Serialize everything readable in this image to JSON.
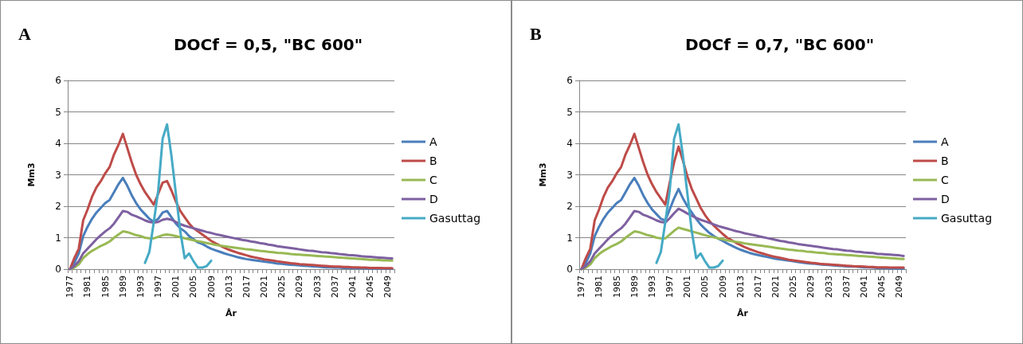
{
  "chart_data": [
    {
      "type": "line",
      "title": "DOCf = 0,5, \"BC 600\"",
      "xlabel": "År",
      "ylabel": "Mm3",
      "annotations": [
        "A"
      ],
      "grid": "y",
      "legend": "right",
      "marker": "none",
      "line_style": "solid",
      "ylim": [
        0,
        6
      ],
      "yticks": [
        0,
        1,
        2,
        3,
        4,
        5,
        6
      ],
      "categories": [
        "1977",
        null,
        null,
        null,
        "1981",
        null,
        null,
        null,
        "1985",
        null,
        null,
        null,
        "1989",
        null,
        null,
        null,
        "1993",
        null,
        null,
        null,
        "1997",
        null,
        null,
        null,
        "2001",
        null,
        null,
        null,
        "2005",
        null,
        null,
        null,
        "2009",
        null,
        null,
        null,
        "2013",
        null,
        null,
        null,
        "2017",
        null,
        null,
        null,
        "2021",
        null,
        null,
        null,
        "2025",
        null,
        null,
        null,
        "2029",
        null,
        null,
        null,
        "2033",
        null,
        null,
        null,
        "2037",
        null,
        null,
        null,
        "2041",
        null,
        null,
        null,
        "2045",
        null,
        null,
        null,
        "2049",
        null
      ],
      "series": [
        {
          "name": "A",
          "color": "#4a7ebb",
          "values": [
            0,
            0.2,
            0.5,
            1.05,
            1.35,
            1.6,
            1.8,
            1.95,
            2.1,
            2.2,
            2.45,
            2.7,
            2.9,
            2.65,
            2.35,
            2.1,
            1.9,
            1.75,
            1.6,
            1.5,
            1.6,
            1.8,
            1.85,
            1.65,
            1.45,
            1.3,
            1.2,
            1.05,
            0.95,
            0.85,
            0.8,
            0.72,
            0.65,
            0.6,
            0.55,
            0.5,
            0.46,
            0.42,
            0.38,
            0.35,
            0.32,
            0.3,
            0.28,
            0.26,
            0.24,
            0.22,
            0.2,
            0.18,
            0.17,
            0.15,
            0.14,
            0.13,
            0.12,
            0.11,
            0.1,
            0.09,
            0.08,
            0.07,
            0.06,
            0.06,
            0.05,
            0.05,
            0.04,
            0.04,
            0.03,
            0.03,
            0.03,
            0.02,
            0.02,
            0.02,
            0.02,
            0.02,
            0.01,
            0.01
          ]
        },
        {
          "name": "B",
          "color": "#be4b48",
          "values": [
            0,
            0.35,
            0.65,
            1.55,
            1.9,
            2.3,
            2.6,
            2.8,
            3.05,
            3.25,
            3.65,
            3.95,
            4.3,
            3.85,
            3.4,
            3.0,
            2.7,
            2.45,
            2.25,
            2.05,
            2.4,
            2.75,
            2.8,
            2.5,
            2.15,
            1.85,
            1.65,
            1.45,
            1.3,
            1.2,
            1.1,
            1.0,
            0.9,
            0.82,
            0.75,
            0.68,
            0.62,
            0.57,
            0.52,
            0.48,
            0.44,
            0.4,
            0.37,
            0.34,
            0.31,
            0.29,
            0.27,
            0.25,
            0.23,
            0.21,
            0.19,
            0.18,
            0.16,
            0.15,
            0.14,
            0.13,
            0.12,
            0.11,
            0.1,
            0.09,
            0.08,
            0.08,
            0.07,
            0.07,
            0.06,
            0.06,
            0.05,
            0.05,
            0.04,
            0.04,
            0.04,
            0.03,
            0.03,
            0.03
          ]
        },
        {
          "name": "C",
          "color": "#98b954",
          "values": [
            0,
            0.05,
            0.15,
            0.35,
            0.48,
            0.58,
            0.66,
            0.74,
            0.8,
            0.88,
            1.0,
            1.1,
            1.2,
            1.18,
            1.13,
            1.08,
            1.05,
            1.0,
            0.98,
            0.98,
            1.03,
            1.08,
            1.1,
            1.08,
            1.05,
            1.02,
            0.98,
            0.95,
            0.92,
            0.89,
            0.86,
            0.83,
            0.8,
            0.77,
            0.75,
            0.73,
            0.71,
            0.69,
            0.67,
            0.65,
            0.63,
            0.62,
            0.6,
            0.58,
            0.57,
            0.55,
            0.54,
            0.52,
            0.51,
            0.5,
            0.48,
            0.47,
            0.46,
            0.45,
            0.44,
            0.43,
            0.42,
            0.41,
            0.4,
            0.39,
            0.38,
            0.37,
            0.36,
            0.35,
            0.34,
            0.33,
            0.32,
            0.31,
            0.3,
            0.3,
            0.29,
            0.28,
            0.28,
            0.27
          ]
        },
        {
          "name": "D",
          "color": "#7d60a0",
          "values": [
            0,
            0.1,
            0.25,
            0.5,
            0.65,
            0.8,
            0.95,
            1.08,
            1.2,
            1.3,
            1.45,
            1.65,
            1.85,
            1.82,
            1.73,
            1.68,
            1.62,
            1.55,
            1.5,
            1.48,
            1.5,
            1.57,
            1.6,
            1.57,
            1.5,
            1.43,
            1.38,
            1.34,
            1.3,
            1.26,
            1.22,
            1.18,
            1.15,
            1.11,
            1.08,
            1.05,
            1.02,
            0.99,
            0.96,
            0.93,
            0.91,
            0.88,
            0.86,
            0.83,
            0.81,
            0.78,
            0.76,
            0.73,
            0.71,
            0.69,
            0.67,
            0.65,
            0.63,
            0.61,
            0.59,
            0.58,
            0.56,
            0.54,
            0.53,
            0.51,
            0.5,
            0.48,
            0.47,
            0.45,
            0.44,
            0.43,
            0.41,
            0.4,
            0.39,
            0.38,
            0.37,
            0.36,
            0.35,
            0.34
          ]
        },
        {
          "name": "Gasuttag",
          "color": "#46aac5",
          "values": [
            null,
            null,
            null,
            null,
            null,
            null,
            null,
            null,
            null,
            null,
            null,
            null,
            null,
            null,
            null,
            null,
            null,
            0.2,
            0.55,
            1.5,
            2.5,
            4.15,
            4.6,
            3.6,
            2.4,
            1.2,
            0.35,
            0.5,
            0.25,
            0.05,
            0.05,
            0.1,
            0.27,
            null,
            null,
            null,
            null,
            null,
            null,
            null,
            null,
            null,
            null,
            null,
            null,
            null,
            null,
            null,
            null,
            null,
            null,
            null,
            null,
            null,
            null,
            null,
            null,
            null,
            null,
            null,
            null,
            null,
            null,
            null,
            null,
            null,
            null,
            null,
            null,
            null,
            null,
            null,
            null,
            null
          ]
        }
      ]
    },
    {
      "type": "line",
      "title": "DOCf = 0,7, \"BC 600\"",
      "xlabel": "År",
      "ylabel": "Mm3",
      "annotations": [
        "B"
      ],
      "grid": "y",
      "legend": "right",
      "marker": "none",
      "line_style": "solid",
      "ylim": [
        0,
        6
      ],
      "yticks": [
        0,
        1,
        2,
        3,
        4,
        5,
        6
      ],
      "categories": [
        "1977",
        null,
        null,
        null,
        "1981",
        null,
        null,
        null,
        "1985",
        null,
        null,
        null,
        "1989",
        null,
        null,
        null,
        "1993",
        null,
        null,
        null,
        "1997",
        null,
        null,
        null,
        "2001",
        null,
        null,
        null,
        "2005",
        null,
        null,
        null,
        "2009",
        null,
        null,
        null,
        "2013",
        null,
        null,
        null,
        "2017",
        null,
        null,
        null,
        "2021",
        null,
        null,
        null,
        "2025",
        null,
        null,
        null,
        "2029",
        null,
        null,
        null,
        "2033",
        null,
        null,
        null,
        "2037",
        null,
        null,
        null,
        "2041",
        null,
        null,
        null,
        "2045",
        null,
        null,
        null,
        "2049",
        null
      ],
      "series": [
        {
          "name": "A",
          "color": "#4a7ebb",
          "values": [
            0,
            0.2,
            0.5,
            1.05,
            1.35,
            1.6,
            1.8,
            1.95,
            2.1,
            2.2,
            2.45,
            2.7,
            2.9,
            2.65,
            2.35,
            2.1,
            1.9,
            1.75,
            1.6,
            1.55,
            1.9,
            2.25,
            2.55,
            2.25,
            2.0,
            1.8,
            1.6,
            1.42,
            1.28,
            1.15,
            1.05,
            0.97,
            0.9,
            0.82,
            0.75,
            0.68,
            0.62,
            0.57,
            0.52,
            0.48,
            0.45,
            0.42,
            0.39,
            0.36,
            0.33,
            0.31,
            0.29,
            0.27,
            0.25,
            0.23,
            0.21,
            0.19,
            0.18,
            0.17,
            0.15,
            0.14,
            0.13,
            0.12,
            0.11,
            0.1,
            0.09,
            0.08,
            0.08,
            0.07,
            0.06,
            0.06,
            0.05,
            0.04,
            0.03,
            0.03,
            0.02,
            0.02,
            0.01,
            0.01
          ]
        },
        {
          "name": "B",
          "color": "#be4b48",
          "values": [
            0,
            0.35,
            0.65,
            1.55,
            1.9,
            2.3,
            2.6,
            2.8,
            3.05,
            3.25,
            3.65,
            3.95,
            4.3,
            3.85,
            3.4,
            3.0,
            2.7,
            2.45,
            2.25,
            2.05,
            2.75,
            3.4,
            3.9,
            3.45,
            2.95,
            2.55,
            2.25,
            1.95,
            1.72,
            1.53,
            1.38,
            1.25,
            1.12,
            1.0,
            0.92,
            0.84,
            0.77,
            0.7,
            0.64,
            0.59,
            0.54,
            0.5,
            0.46,
            0.42,
            0.39,
            0.36,
            0.33,
            0.3,
            0.28,
            0.26,
            0.24,
            0.22,
            0.2,
            0.19,
            0.17,
            0.16,
            0.15,
            0.14,
            0.13,
            0.12,
            0.11,
            0.1,
            0.09,
            0.09,
            0.08,
            0.07,
            0.07,
            0.06,
            0.06,
            0.06,
            0.05,
            0.05,
            0.05,
            0.05
          ]
        },
        {
          "name": "C",
          "color": "#98b954",
          "values": [
            0,
            0.05,
            0.15,
            0.35,
            0.48,
            0.58,
            0.66,
            0.74,
            0.8,
            0.88,
            1.0,
            1.1,
            1.2,
            1.18,
            1.13,
            1.08,
            1.05,
            1.0,
            0.98,
            0.98,
            1.1,
            1.22,
            1.32,
            1.28,
            1.24,
            1.2,
            1.16,
            1.12,
            1.08,
            1.04,
            1.01,
            0.98,
            0.95,
            0.92,
            0.89,
            0.87,
            0.85,
            0.82,
            0.8,
            0.78,
            0.76,
            0.74,
            0.72,
            0.7,
            0.68,
            0.66,
            0.64,
            0.62,
            0.61,
            0.59,
            0.58,
            0.56,
            0.55,
            0.53,
            0.52,
            0.51,
            0.49,
            0.48,
            0.47,
            0.46,
            0.45,
            0.44,
            0.43,
            0.42,
            0.41,
            0.4,
            0.39,
            0.38,
            0.37,
            0.36,
            0.35,
            0.34,
            0.33,
            0.32
          ]
        },
        {
          "name": "D",
          "color": "#7d60a0",
          "values": [
            0,
            0.1,
            0.25,
            0.5,
            0.65,
            0.8,
            0.95,
            1.08,
            1.2,
            1.3,
            1.45,
            1.65,
            1.85,
            1.82,
            1.73,
            1.68,
            1.62,
            1.55,
            1.5,
            1.48,
            1.62,
            1.78,
            1.92,
            1.85,
            1.77,
            1.7,
            1.63,
            1.57,
            1.52,
            1.47,
            1.42,
            1.37,
            1.33,
            1.29,
            1.25,
            1.21,
            1.18,
            1.14,
            1.11,
            1.08,
            1.05,
            1.02,
            0.99,
            0.96,
            0.93,
            0.9,
            0.88,
            0.85,
            0.83,
            0.8,
            0.78,
            0.76,
            0.74,
            0.72,
            0.7,
            0.68,
            0.66,
            0.64,
            0.63,
            0.61,
            0.59,
            0.58,
            0.56,
            0.55,
            0.53,
            0.52,
            0.51,
            0.49,
            0.48,
            0.47,
            0.46,
            0.45,
            0.44,
            0.42
          ]
        },
        {
          "name": "Gasuttag",
          "color": "#46aac5",
          "values": [
            null,
            null,
            null,
            null,
            null,
            null,
            null,
            null,
            null,
            null,
            null,
            null,
            null,
            null,
            null,
            null,
            null,
            0.2,
            0.55,
            1.5,
            2.5,
            4.15,
            4.6,
            3.6,
            2.4,
            1.2,
            0.35,
            0.5,
            0.25,
            0.05,
            0.05,
            0.1,
            0.27,
            null,
            null,
            null,
            null,
            null,
            null,
            null,
            null,
            null,
            null,
            null,
            null,
            null,
            null,
            null,
            null,
            null,
            null,
            null,
            null,
            null,
            null,
            null,
            null,
            null,
            null,
            null,
            null,
            null,
            null,
            null,
            null,
            null,
            null,
            null,
            null,
            null,
            null,
            null,
            null,
            null
          ]
        }
      ]
    }
  ]
}
